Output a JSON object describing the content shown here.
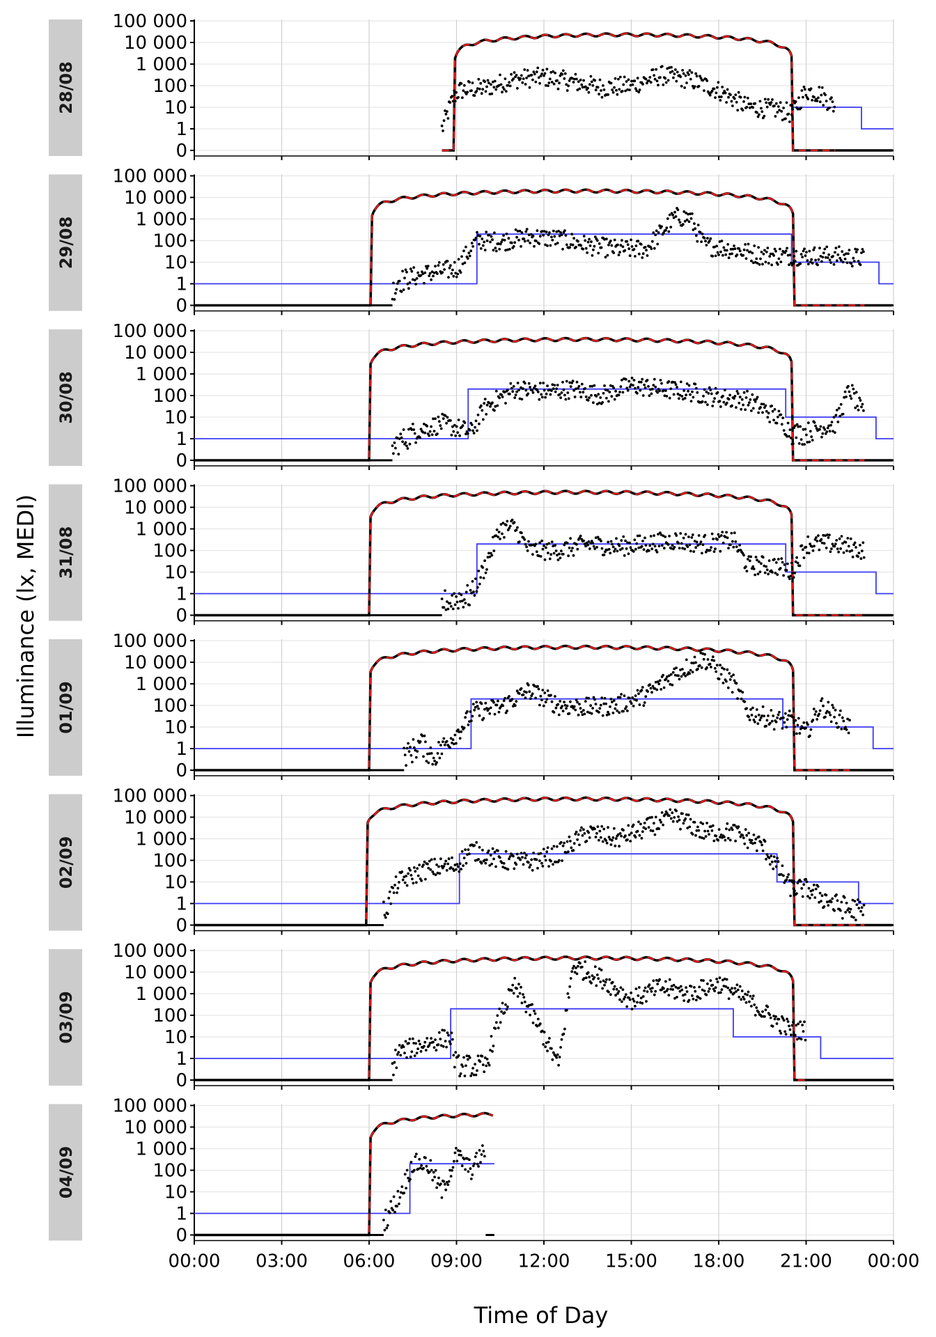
{
  "chart_data": {
    "type": "scatter",
    "xlabel": "Time of Day",
    "ylabel": "Illuminance (lx, MEDI)",
    "x_ticks": [
      "00:00",
      "03:00",
      "06:00",
      "09:00",
      "12:00",
      "15:00",
      "18:00",
      "21:00",
      "00:00"
    ],
    "x_range_hours": [
      0,
      24
    ],
    "y_scale": "symlog",
    "y_ticks": [
      "0",
      "1",
      "10",
      "100",
      "1 000",
      "10 000",
      "100 000"
    ],
    "grid": true,
    "colors": {
      "measured": "#000000",
      "daylight_model": "#e41a1c",
      "recommendation": "#3b3bf5",
      "facet_strip": "#cccccc",
      "grid": "#e6e6e6"
    },
    "panels": [
      {
        "label": "28/08",
        "start": 8.5,
        "end": 24,
        "sunrise": 8.9,
        "sunset": 20.55,
        "peak": 23000,
        "measured": [
          [
            8.5,
            1
          ],
          [
            8.9,
            30
          ],
          [
            9.1,
            60
          ],
          [
            10.0,
            80
          ],
          [
            11.0,
            200
          ],
          [
            12.0,
            250
          ],
          [
            13.0,
            150
          ],
          [
            14.0,
            80
          ],
          [
            15.0,
            100
          ],
          [
            16.0,
            300
          ],
          [
            17.0,
            200
          ],
          [
            18.0,
            60
          ],
          [
            19.0,
            10
          ],
          [
            20.0,
            8
          ],
          [
            20.5,
            5
          ],
          [
            21.0,
            60
          ],
          [
            21.5,
            40
          ],
          [
            22.0,
            10
          ]
        ],
        "rec_steps": [
          [
            20.5,
            22.9,
            10
          ],
          [
            22.9,
            24,
            1
          ]
        ]
      },
      {
        "label": "29/08",
        "start": 0,
        "end": 24,
        "sunrise": 6.05,
        "sunset": 20.6,
        "peak": 20000,
        "measured": [
          [
            6.8,
            0.5
          ],
          [
            7.0,
            1.5
          ],
          [
            8.0,
            3
          ],
          [
            9.0,
            5
          ],
          [
            9.7,
            100
          ],
          [
            10.5,
            90
          ],
          [
            11.5,
            150
          ],
          [
            12.5,
            120
          ],
          [
            13.5,
            60
          ],
          [
            14.5,
            40
          ],
          [
            15.5,
            40
          ],
          [
            16.5,
            1200
          ],
          [
            17.0,
            1200
          ],
          [
            17.5,
            60
          ],
          [
            18.5,
            40
          ],
          [
            19.5,
            20
          ],
          [
            20.5,
            20
          ],
          [
            21.0,
            20
          ],
          [
            22.0,
            20
          ],
          [
            23.0,
            15
          ]
        ],
        "rec_steps": [
          [
            0,
            9.7,
            1
          ],
          [
            9.7,
            20.5,
            200
          ],
          [
            20.5,
            23.5,
            10
          ],
          [
            23.5,
            24,
            1
          ]
        ]
      },
      {
        "label": "30/08",
        "start": 0,
        "end": 24,
        "sunrise": 6.0,
        "sunset": 20.55,
        "peak": 40000,
        "measured": [
          [
            6.8,
            0.5
          ],
          [
            7.5,
            2
          ],
          [
            8.5,
            5
          ],
          [
            9.5,
            2
          ],
          [
            10.0,
            30
          ],
          [
            11.0,
            200
          ],
          [
            12.0,
            150
          ],
          [
            13.0,
            200
          ],
          [
            14.0,
            100
          ],
          [
            15.0,
            300
          ],
          [
            16.0,
            200
          ],
          [
            17.0,
            150
          ],
          [
            18.0,
            80
          ],
          [
            19.0,
            60
          ],
          [
            20.0,
            10
          ],
          [
            20.5,
            2
          ],
          [
            21.0,
            2
          ],
          [
            22.0,
            5
          ],
          [
            22.5,
            200
          ],
          [
            23.0,
            10
          ]
        ],
        "rec_steps": [
          [
            0,
            9.4,
            1
          ],
          [
            9.4,
            20.3,
            200
          ],
          [
            20.3,
            23.4,
            10
          ],
          [
            23.4,
            24,
            1
          ]
        ]
      },
      {
        "label": "31/08",
        "start": 0,
        "end": 24,
        "sunrise": 6.0,
        "sunset": 20.55,
        "peak": 50000,
        "measured": [
          [
            8.5,
            0.5
          ],
          [
            9.5,
            1
          ],
          [
            9.9,
            10
          ],
          [
            10.5,
            1000
          ],
          [
            11.0,
            1200
          ],
          [
            11.5,
            100
          ],
          [
            12.5,
            100
          ],
          [
            13.5,
            200
          ],
          [
            14.5,
            150
          ],
          [
            15.5,
            200
          ],
          [
            16.5,
            300
          ],
          [
            17.5,
            200
          ],
          [
            18.5,
            300
          ],
          [
            19.0,
            20
          ],
          [
            20.0,
            20
          ],
          [
            20.5,
            10
          ],
          [
            21.0,
            200
          ],
          [
            22.0,
            200
          ],
          [
            23.0,
            100
          ]
        ],
        "rec_steps": [
          [
            0,
            9.7,
            1
          ],
          [
            9.7,
            20.3,
            200
          ],
          [
            20.3,
            23.4,
            10
          ],
          [
            23.4,
            24,
            1
          ]
        ]
      },
      {
        "label": "01/09",
        "start": 0,
        "end": 24,
        "sunrise": 6.0,
        "sunset": 20.6,
        "peak": 50000,
        "measured": [
          [
            7.2,
            0.5
          ],
          [
            7.8,
            2
          ],
          [
            8.2,
            0.5
          ],
          [
            9.0,
            5
          ],
          [
            9.6,
            50
          ],
          [
            10.5,
            80
          ],
          [
            11.5,
            500
          ],
          [
            12.5,
            100
          ],
          [
            13.5,
            80
          ],
          [
            14.5,
            100
          ],
          [
            15.5,
            300
          ],
          [
            16.5,
            3000
          ],
          [
            17.5,
            15000
          ],
          [
            18.5,
            1000
          ],
          [
            19.0,
            50
          ],
          [
            20.0,
            20
          ],
          [
            20.5,
            20
          ],
          [
            21.0,
            5
          ],
          [
            21.5,
            100
          ],
          [
            22.5,
            10
          ]
        ],
        "rec_steps": [
          [
            0,
            9.5,
            1
          ],
          [
            9.5,
            20.2,
            200
          ],
          [
            20.2,
            23.3,
            10
          ],
          [
            23.3,
            24,
            1
          ]
        ]
      },
      {
        "label": "02/09",
        "start": 0,
        "end": 24,
        "sunrise": 5.9,
        "sunset": 20.6,
        "peak": 70000,
        "measured": [
          [
            6.5,
            0.5
          ],
          [
            7.0,
            10
          ],
          [
            8.0,
            40
          ],
          [
            9.0,
            60
          ],
          [
            9.5,
            300
          ],
          [
            10.5,
            100
          ],
          [
            11.5,
            80
          ],
          [
            12.5,
            200
          ],
          [
            13.5,
            2000
          ],
          [
            14.5,
            1000
          ],
          [
            15.5,
            3000
          ],
          [
            16.5,
            10000
          ],
          [
            17.5,
            2000
          ],
          [
            18.5,
            2000
          ],
          [
            19.5,
            500
          ],
          [
            20.0,
            50
          ],
          [
            20.5,
            5
          ],
          [
            21.0,
            5
          ],
          [
            22.0,
            1
          ],
          [
            23.0,
            0.5
          ]
        ],
        "rec_steps": [
          [
            0,
            9.1,
            1
          ],
          [
            9.1,
            20.0,
            200
          ],
          [
            20.0,
            22.8,
            10
          ],
          [
            22.8,
            24,
            1
          ]
        ]
      },
      {
        "label": "03/09",
        "start": 0,
        "end": 24,
        "sunrise": 6.0,
        "sunset": 20.6,
        "peak": 45000,
        "measured": [
          [
            6.8,
            0.5
          ],
          [
            7.0,
            2
          ],
          [
            8.0,
            5
          ],
          [
            8.8,
            10
          ],
          [
            9.0,
            0.5
          ],
          [
            10.0,
            0.5
          ],
          [
            10.5,
            100
          ],
          [
            11.0,
            2000
          ],
          [
            11.5,
            200
          ],
          [
            12.5,
            0.5
          ],
          [
            13.0,
            20000
          ],
          [
            14.0,
            5000
          ],
          [
            15.0,
            500
          ],
          [
            16.0,
            2000
          ],
          [
            17.0,
            1000
          ],
          [
            18.0,
            3000
          ],
          [
            19.0,
            500
          ],
          [
            20.0,
            50
          ],
          [
            20.5,
            20
          ],
          [
            21.0,
            20
          ]
        ],
        "rec_steps": [
          [
            0,
            8.8,
            1
          ],
          [
            8.8,
            18.5,
            200
          ],
          [
            18.5,
            21.5,
            10
          ],
          [
            21.5,
            24,
            1
          ]
        ]
      },
      {
        "label": "04/09",
        "start": 0,
        "end": 10.3,
        "sunrise": 6.0,
        "sunset": 20.6,
        "peak": 45000,
        "measured": [
          [
            6.5,
            0.5
          ],
          [
            7.0,
            5
          ],
          [
            7.5,
            200
          ],
          [
            8.0,
            200
          ],
          [
            8.5,
            10
          ],
          [
            9.0,
            500
          ],
          [
            9.5,
            100
          ],
          [
            10.0,
            1000
          ]
        ],
        "rec_steps": [
          [
            0,
            7.4,
            1
          ],
          [
            7.4,
            10.3,
            200
          ]
        ]
      }
    ]
  }
}
